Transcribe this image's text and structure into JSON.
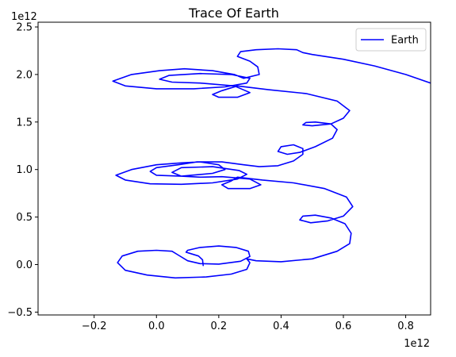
{
  "chart_data": {
    "type": "line",
    "title": "Trace Of Earth",
    "xlabel": "",
    "ylabel": "",
    "x_offset_label": "1e12",
    "y_offset_label": "1e12",
    "xlim": [
      -0.38,
      0.88
    ],
    "ylim": [
      -0.53,
      2.55
    ],
    "xticks": [
      -0.2,
      0.0,
      0.2,
      0.4,
      0.6,
      0.8
    ],
    "xtick_labels": [
      "−0.2",
      "0.0",
      "0.2",
      "0.4",
      "0.6",
      "0.8"
    ],
    "yticks": [
      -0.5,
      0.0,
      0.5,
      1.0,
      1.5,
      2.0,
      2.5
    ],
    "ytick_labels": [
      "−0.5",
      "0.0",
      "0.5",
      "1.0",
      "1.5",
      "2.0",
      "2.5"
    ],
    "grid": false,
    "legend_position": "upper right",
    "series": [
      {
        "name": "Earth",
        "color": "#0000ff",
        "points": [
          [
            0.15,
            -0.01
          ],
          [
            0.148,
            0.05
          ],
          [
            0.135,
            0.09
          ],
          [
            0.11,
            0.115
          ],
          [
            0.095,
            0.13
          ],
          [
            0.1,
            0.15
          ],
          [
            0.14,
            0.18
          ],
          [
            0.2,
            0.195
          ],
          [
            0.255,
            0.18
          ],
          [
            0.295,
            0.14
          ],
          [
            0.3,
            0.085
          ],
          [
            0.27,
            0.035
          ],
          [
            0.2,
            0.005
          ],
          [
            0.14,
            0.01
          ],
          [
            0.1,
            0.04
          ],
          [
            0.07,
            0.1
          ],
          [
            0.05,
            0.14
          ],
          [
            0.0,
            0.15
          ],
          [
            -0.06,
            0.14
          ],
          [
            -0.11,
            0.09
          ],
          [
            -0.125,
            0.02
          ],
          [
            -0.1,
            -0.06
          ],
          [
            -0.03,
            -0.11
          ],
          [
            0.06,
            -0.14
          ],
          [
            0.16,
            -0.13
          ],
          [
            0.24,
            -0.1
          ],
          [
            0.29,
            -0.05
          ],
          [
            0.3,
            0.02
          ],
          [
            0.29,
            0.06
          ],
          [
            0.32,
            0.04
          ],
          [
            0.4,
            0.03
          ],
          [
            0.5,
            0.06
          ],
          [
            0.58,
            0.14
          ],
          [
            0.62,
            0.22
          ],
          [
            0.625,
            0.33
          ],
          [
            0.605,
            0.43
          ],
          [
            0.56,
            0.49
          ],
          [
            0.51,
            0.52
          ],
          [
            0.47,
            0.51
          ],
          [
            0.46,
            0.47
          ],
          [
            0.495,
            0.44
          ],
          [
            0.55,
            0.46
          ],
          [
            0.6,
            0.51
          ],
          [
            0.63,
            0.61
          ],
          [
            0.61,
            0.71
          ],
          [
            0.54,
            0.8
          ],
          [
            0.44,
            0.86
          ],
          [
            0.34,
            0.89
          ],
          [
            0.26,
            0.92
          ],
          [
            0.24,
            0.88
          ],
          [
            0.21,
            0.84
          ],
          [
            0.23,
            0.8
          ],
          [
            0.3,
            0.8
          ],
          [
            0.335,
            0.84
          ],
          [
            0.3,
            0.9
          ],
          [
            0.21,
            0.925
          ],
          [
            0.14,
            0.92
          ],
          [
            0.08,
            0.93
          ],
          [
            0.05,
            0.97
          ],
          [
            0.08,
            1.02
          ],
          [
            0.18,
            1.03
          ],
          [
            0.265,
            0.99
          ],
          [
            0.29,
            0.95
          ],
          [
            0.26,
            0.9
          ],
          [
            0.18,
            0.86
          ],
          [
            0.08,
            0.845
          ],
          [
            -0.02,
            0.85
          ],
          [
            -0.1,
            0.89
          ],
          [
            -0.13,
            0.94
          ],
          [
            -0.08,
            1.0
          ],
          [
            0.0,
            1.05
          ],
          [
            0.08,
            1.07
          ],
          [
            0.14,
            1.08
          ],
          [
            0.2,
            1.05
          ],
          [
            0.22,
            1.0
          ],
          [
            0.18,
            0.96
          ],
          [
            0.08,
            0.93
          ],
          [
            0.0,
            0.94
          ],
          [
            -0.02,
            0.98
          ],
          [
            0.0,
            1.02
          ],
          [
            0.07,
            1.05
          ],
          [
            0.13,
            1.08
          ],
          [
            0.21,
            1.08
          ],
          [
            0.28,
            1.05
          ],
          [
            0.33,
            1.03
          ],
          [
            0.39,
            1.04
          ],
          [
            0.44,
            1.09
          ],
          [
            0.47,
            1.16
          ],
          [
            0.47,
            1.22
          ],
          [
            0.44,
            1.26
          ],
          [
            0.4,
            1.24
          ],
          [
            0.39,
            1.19
          ],
          [
            0.42,
            1.16
          ],
          [
            0.46,
            1.18
          ],
          [
            0.51,
            1.24
          ],
          [
            0.565,
            1.33
          ],
          [
            0.58,
            1.42
          ],
          [
            0.56,
            1.48
          ],
          [
            0.51,
            1.5
          ],
          [
            0.48,
            1.495
          ],
          [
            0.47,
            1.47
          ],
          [
            0.5,
            1.46
          ],
          [
            0.56,
            1.48
          ],
          [
            0.6,
            1.54
          ],
          [
            0.62,
            1.62
          ],
          [
            0.58,
            1.72
          ],
          [
            0.48,
            1.8
          ],
          [
            0.36,
            1.84
          ],
          [
            0.26,
            1.88
          ],
          [
            0.24,
            1.86
          ],
          [
            0.21,
            1.83
          ],
          [
            0.18,
            1.79
          ],
          [
            0.2,
            1.76
          ],
          [
            0.26,
            1.76
          ],
          [
            0.3,
            1.81
          ],
          [
            0.25,
            1.88
          ],
          [
            0.14,
            1.91
          ],
          [
            0.05,
            1.92
          ],
          [
            0.01,
            1.95
          ],
          [
            0.04,
            1.99
          ],
          [
            0.14,
            2.01
          ],
          [
            0.24,
            2.0
          ],
          [
            0.3,
            1.96
          ],
          [
            0.29,
            1.91
          ],
          [
            0.22,
            1.87
          ],
          [
            0.12,
            1.85
          ],
          [
            0.0,
            1.85
          ],
          [
            -0.1,
            1.88
          ],
          [
            -0.14,
            1.93
          ],
          [
            -0.08,
            2.0
          ],
          [
            0.01,
            2.04
          ],
          [
            0.09,
            2.06
          ],
          [
            0.18,
            2.04
          ],
          [
            0.25,
            2.0
          ],
          [
            0.28,
            1.96
          ],
          [
            0.33,
            2.0
          ],
          [
            0.325,
            2.08
          ],
          [
            0.3,
            2.14
          ],
          [
            0.26,
            2.19
          ],
          [
            0.27,
            2.24
          ],
          [
            0.32,
            2.26
          ],
          [
            0.39,
            2.27
          ],
          [
            0.45,
            2.26
          ],
          [
            0.47,
            2.23
          ],
          [
            0.5,
            2.21
          ],
          [
            0.6,
            2.16
          ],
          [
            0.7,
            2.09
          ],
          [
            0.8,
            2.0
          ],
          [
            0.88,
            1.91
          ]
        ]
      }
    ]
  }
}
